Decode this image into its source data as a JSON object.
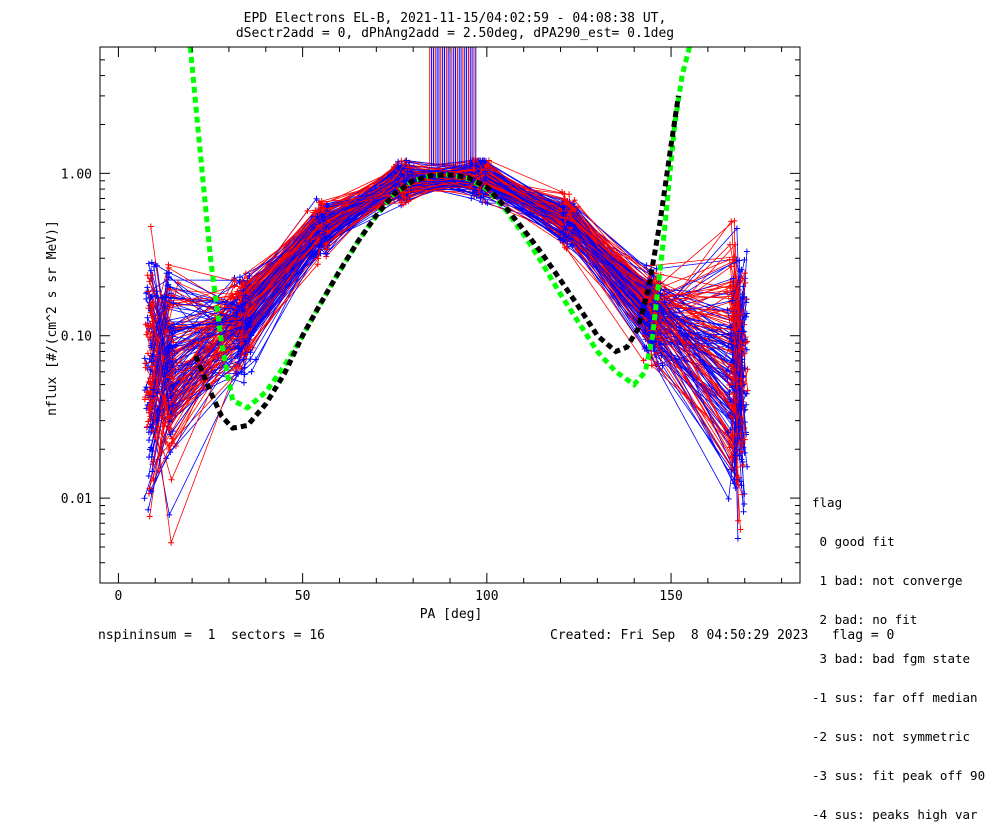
{
  "chart_data": {
    "type": "line",
    "title": "EPD Electrons EL-B, 2021-11-15/04:02:59 - 04:08:38 UT,",
    "subtitle": "dSectr2add = 0, dPhAng2add = 2.50deg, dPA290_est=   0.1deg",
    "xlabel": "PA [deg]",
    "ylabel": "nflux [#/(cm^2 s sr MeV)]",
    "xlim": [
      -5,
      185
    ],
    "ylim": [
      0.003,
      6.0
    ],
    "yscale": "log",
    "x_ticks": [
      0,
      50,
      100,
      150
    ],
    "y_ticks": [
      {
        "value": 0.01,
        "label": "0.01"
      },
      {
        "value": 0.1,
        "label": "0.10"
      },
      {
        "value": 1.0,
        "label": "1.00"
      }
    ],
    "series": [
      {
        "color": "#00ff00",
        "style": "dashed",
        "x": [
          19.5,
          22,
          25,
          28,
          31,
          35,
          40,
          45,
          50,
          55,
          60,
          65,
          70,
          75,
          80,
          85,
          90,
          95,
          100,
          105,
          110,
          115,
          120,
          125,
          130,
          135,
          140,
          143,
          145,
          148,
          151,
          153,
          155
        ],
        "y": [
          6.0,
          1.5,
          0.3,
          0.09,
          0.04,
          0.036,
          0.045,
          0.065,
          0.1,
          0.16,
          0.25,
          0.38,
          0.55,
          0.75,
          0.9,
          0.97,
          0.98,
          0.93,
          0.8,
          0.6,
          0.42,
          0.28,
          0.18,
          0.12,
          0.08,
          0.06,
          0.05,
          0.06,
          0.1,
          0.4,
          2.0,
          4.0,
          6.0
        ]
      },
      {
        "color": "#000000",
        "style": "dashed",
        "x": [
          21,
          25,
          28,
          31,
          35,
          40,
          45,
          50,
          55,
          60,
          65,
          70,
          75,
          80,
          85,
          90,
          95,
          100,
          105,
          110,
          115,
          120,
          125,
          130,
          135,
          138,
          141,
          144,
          147,
          150,
          152
        ],
        "y": [
          0.075,
          0.045,
          0.032,
          0.027,
          0.028,
          0.038,
          0.058,
          0.1,
          0.16,
          0.25,
          0.38,
          0.55,
          0.75,
          0.9,
          0.97,
          0.98,
          0.94,
          0.82,
          0.62,
          0.45,
          0.32,
          0.22,
          0.15,
          0.1,
          0.08,
          0.085,
          0.11,
          0.2,
          0.5,
          1.5,
          3.0
        ]
      }
    ]
  },
  "legend": {
    "heading": "flag",
    "items": [
      " 0 good fit",
      " 1 bad: not converge",
      " 2 bad: no fit",
      " 3 bad: bad fgm state",
      "-1 sus: far off median",
      "-2 sus: not symmetric",
      "-3 sus: fit peak off 90",
      "-4 sus: peaks high var"
    ]
  },
  "footer": {
    "left": "nspininsum =  1  sectors = 16",
    "right": "Created: Fri Sep  8 04:50:29 2023   flag = 0"
  },
  "colors": {
    "red": "#ff0000",
    "blue": "#0000ff",
    "green": "#00ff00",
    "black": "#000000"
  }
}
